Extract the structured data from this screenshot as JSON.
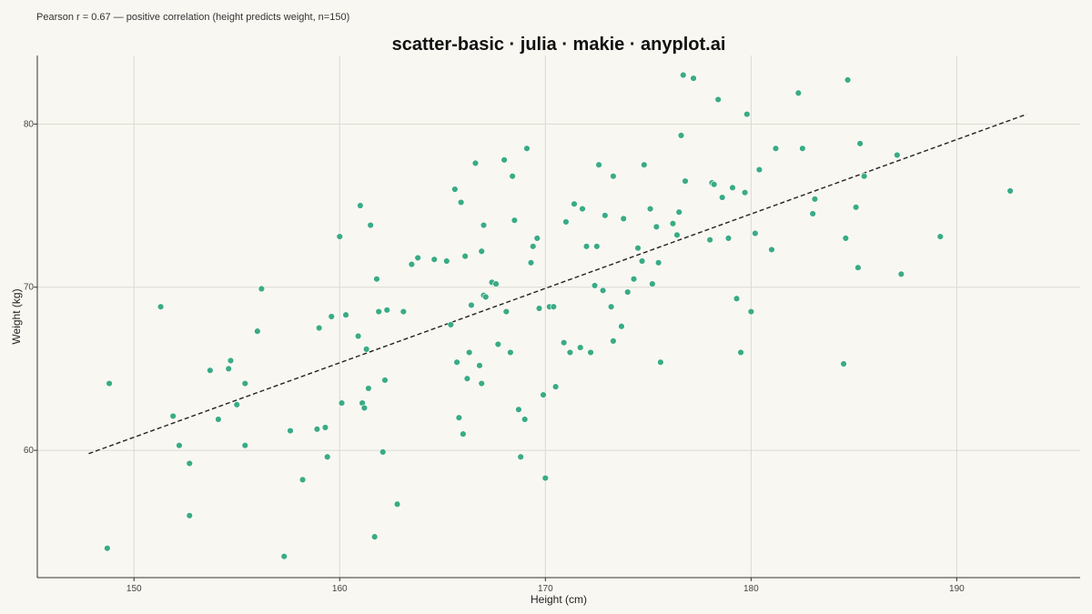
{
  "colors": {
    "background": "#f9f7f1",
    "point": "#3aab86",
    "trend": "#222222",
    "grid": "#dcd9d2",
    "axis": "#333333"
  },
  "chart_data": {
    "type": "scatter",
    "title": "scatter-basic · julia · makie · anyplot.ai",
    "annotation": "Pearson r = 0.67 — positive correlation (height predicts weight, n=150)",
    "xlabel": "Height (cm)",
    "ylabel": "Weight (kg)",
    "xlim": [
      145.3,
      196
    ],
    "ylim": [
      52.2,
      84.2
    ],
    "xticks": [
      150,
      160,
      170,
      180,
      190
    ],
    "yticks": [
      60,
      70,
      80
    ],
    "grid": true,
    "legend": "none",
    "trendline": {
      "x": [
        147.8,
        193.4
      ],
      "y": [
        59.8,
        80.6
      ],
      "style": "dashed"
    },
    "x": [
      148.7,
      148.8,
      151.3,
      151.9,
      152.2,
      152.7,
      152.7,
      153.7,
      154.1,
      154.6,
      154.7,
      155.0,
      155.4,
      155.4,
      156.0,
      156.2,
      157.3,
      157.6,
      158.2,
      158.9,
      159.3,
      159.4,
      159.6,
      160.0,
      160.1,
      160.3,
      160.9,
      161.0,
      161.1,
      161.2,
      161.3,
      161.4,
      161.5,
      161.7,
      161.8,
      161.9,
      162.1,
      162.2,
      162.3,
      162.8,
      163.1,
      163.8,
      164.6,
      165.2,
      165.4,
      165.6,
      165.7,
      165.8,
      165.9,
      166.0,
      166.1,
      166.2,
      166.3,
      166.4,
      166.6,
      166.8,
      166.9,
      166.9,
      167.0,
      167.0,
      167.1,
      167.4,
      167.6,
      167.7,
      168.0,
      168.1,
      168.3,
      168.4,
      168.5,
      168.7,
      168.8,
      169.0,
      169.1,
      169.3,
      169.4,
      169.6,
      169.7,
      169.9,
      170.0,
      170.2,
      170.4,
      170.5,
      170.9,
      171.0,
      171.2,
      171.4,
      171.7,
      172.0,
      172.2,
      172.4,
      172.5,
      172.6,
      172.8,
      172.9,
      173.2,
      173.3,
      173.3,
      173.7,
      173.8,
      174.0,
      174.3,
      174.5,
      174.7,
      174.8,
      175.1,
      175.2,
      175.4,
      175.5,
      175.6,
      176.2,
      176.4,
      176.5,
      176.6,
      176.8,
      177.2,
      178.0,
      178.1,
      178.2,
      178.4,
      178.6,
      178.9,
      179.1,
      179.3,
      179.5,
      179.7,
      179.8,
      180.0,
      180.2,
      180.4,
      181.0,
      181.2,
      182.3,
      182.5,
      183.0,
      183.1,
      184.5,
      184.6,
      184.7,
      185.1,
      185.2,
      185.3,
      187.1,
      187.3,
      189.2,
      192.6,
      185.5,
      176.7,
      163.5,
      159.0,
      171.8
    ],
    "y": [
      54.0,
      64.1,
      68.8,
      62.1,
      60.3,
      56.0,
      59.2,
      64.9,
      61.9,
      65.0,
      65.5,
      62.8,
      64.1,
      60.3,
      67.3,
      69.9,
      53.5,
      61.2,
      58.2,
      61.3,
      61.4,
      59.6,
      68.2,
      73.1,
      62.9,
      68.3,
      67.0,
      75.0,
      62.9,
      62.6,
      66.2,
      63.8,
      73.8,
      54.7,
      70.5,
      68.5,
      59.9,
      64.3,
      68.6,
      56.7,
      68.5,
      71.8,
      71.7,
      71.6,
      67.7,
      76.0,
      65.4,
      62.0,
      75.2,
      61.0,
      71.9,
      64.4,
      66.0,
      68.9,
      77.6,
      65.2,
      64.1,
      72.2,
      69.5,
      73.8,
      69.4,
      70.3,
      70.2,
      66.5,
      77.8,
      68.5,
      66.0,
      76.8,
      74.1,
      62.5,
      59.6,
      61.9,
      78.5,
      71.5,
      72.5,
      73.0,
      68.7,
      63.4,
      58.3,
      68.8,
      68.8,
      63.9,
      66.6,
      74.0,
      66.0,
      75.1,
      66.3,
      72.5,
      66.0,
      70.1,
      72.5,
      77.5,
      69.8,
      74.4,
      68.8,
      66.7,
      76.8,
      67.6,
      74.2,
      69.7,
      70.5,
      72.4,
      71.6,
      77.5,
      74.8,
      70.2,
      73.7,
      71.5,
      65.4,
      73.9,
      73.2,
      74.6,
      79.3,
      76.5,
      82.8,
      72.9,
      76.4,
      76.3,
      81.5,
      75.5,
      73.0,
      76.1,
      69.3,
      66.0,
      75.8,
      80.6,
      68.5,
      73.3,
      77.2,
      72.3,
      78.5,
      81.9,
      78.5,
      74.5,
      75.4,
      65.3,
      73.0,
      82.7,
      74.9,
      71.2,
      78.8,
      78.1,
      70.8,
      73.1,
      75.9,
      76.8,
      83.0,
      71.4,
      67.5,
      74.8
    ]
  }
}
